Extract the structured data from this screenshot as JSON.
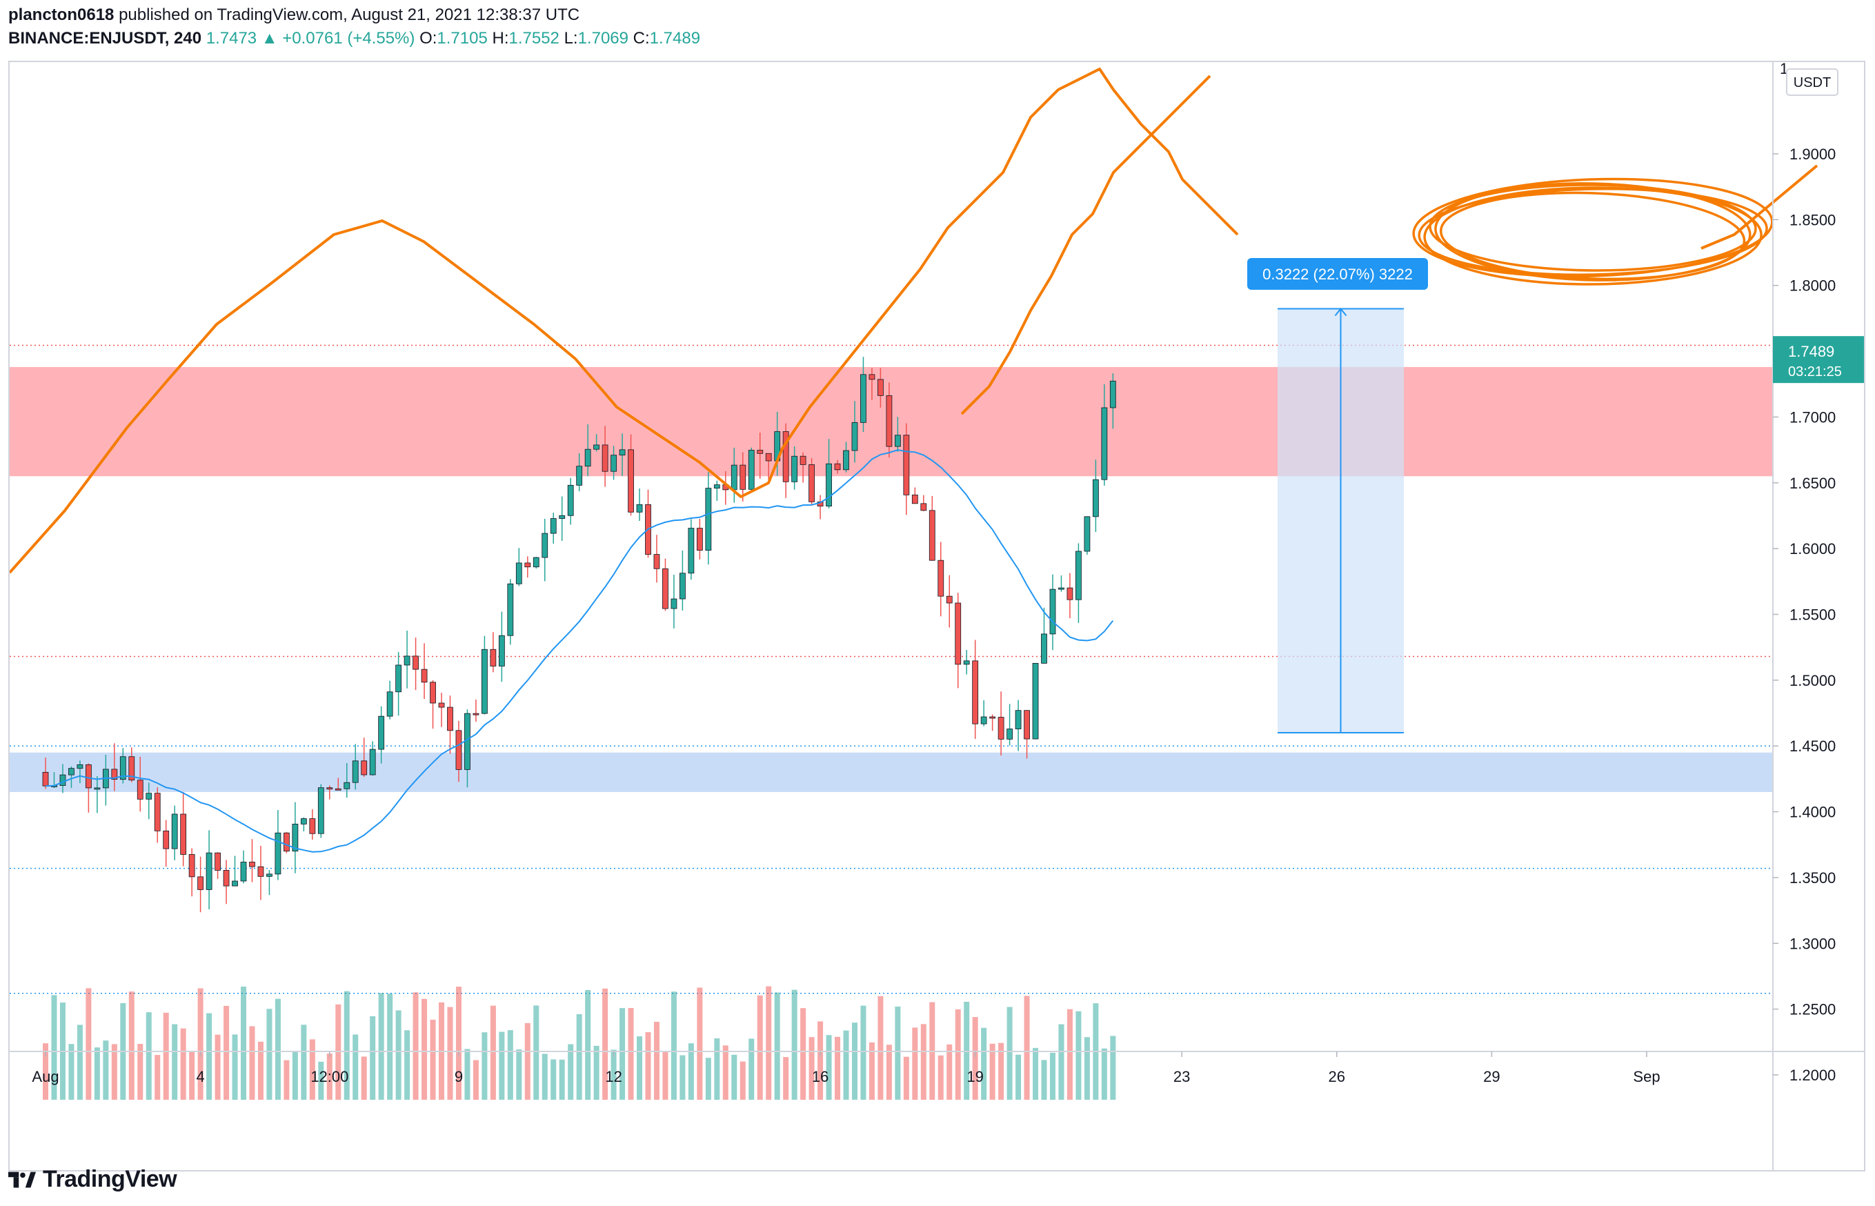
{
  "header": {
    "author": "plancton0618",
    "published_text": "published on TradingView.com, August 21, 2021 12:38:37 UTC",
    "symbol": "BINANCE:ENJUSDT, 240",
    "last": "1.7473",
    "change": "▲ +0.0761 (+4.55%)",
    "o_label": "O:",
    "o_value": "1.7105",
    "h_label": "H:",
    "h_value": "1.7552",
    "l_label": "L:",
    "l_value": "1.7069",
    "c_label": "C:",
    "c_value": "1.7489"
  },
  "footer": {
    "brand": "TradingView"
  },
  "chart_data": {
    "type": "candlestick",
    "currency": "USDT",
    "y_ticks": [
      "1.9000",
      "1.8500",
      "1.8000",
      "1.7000",
      "1.6500",
      "1.6000",
      "1.5500",
      "1.5000",
      "1.4500",
      "1.4000",
      "1.3500",
      "1.3000",
      "1.2500",
      "1.2000"
    ],
    "ylim": [
      1.17,
      1.945
    ],
    "x_ticks": [
      {
        "label": "Aug",
        "date": "2021-08-01"
      },
      {
        "label": "4",
        "date": "2021-08-04"
      },
      {
        "label": "12:00",
        "date": "2021-08-06 12:00"
      },
      {
        "label": "9",
        "date": "2021-08-09"
      },
      {
        "label": "12",
        "date": "2021-08-12"
      },
      {
        "label": "16",
        "date": "2021-08-16"
      },
      {
        "label": "19",
        "date": "2021-08-19"
      },
      {
        "label": "23",
        "date": "2021-08-23"
      },
      {
        "label": "26",
        "date": "2021-08-26"
      },
      {
        "label": "29",
        "date": "2021-08-29"
      },
      {
        "label": "Sep",
        "date": "2021-09-01"
      }
    ],
    "price_label": {
      "value": "1.7489",
      "countdown": "03:21:25"
    },
    "top_partial_label": "1",
    "resistance_zone": [
      1.655,
      1.738
    ],
    "support_zone": [
      1.415,
      1.445
    ],
    "dotted_levels": [
      1.7545,
      1.518,
      1.45,
      1.357,
      1.262
    ],
    "measure": {
      "text": "0.3222 (22.07%) 3222",
      "from": 1.4601,
      "to": 1.7823
    },
    "sample_points": [
      {
        "x": "2021-08-01",
        "price": 1.42
      },
      {
        "x": "2021-08-04",
        "price": 1.35
      },
      {
        "x": "2021-08-09",
        "price": 1.52
      },
      {
        "x": "2021-08-12",
        "price": 1.64
      },
      {
        "x": "2021-08-16",
        "price": 1.74
      },
      {
        "x": "2021-08-18",
        "price": 1.45
      },
      {
        "x": "2021-08-19",
        "price": 1.47
      },
      {
        "x": "2021-08-21",
        "price": 1.7489
      }
    ],
    "colors": {
      "up": "#26a69a",
      "down": "#ef5350",
      "zone_red": "#ffb3b8",
      "zone_blue": "#c9dcf7",
      "measure_fill": "#cfe3fa",
      "measure_line": "#2196f3",
      "drawing": "#f57c00",
      "ma": "#2196f3",
      "label_blue": "#2196f3"
    }
  }
}
